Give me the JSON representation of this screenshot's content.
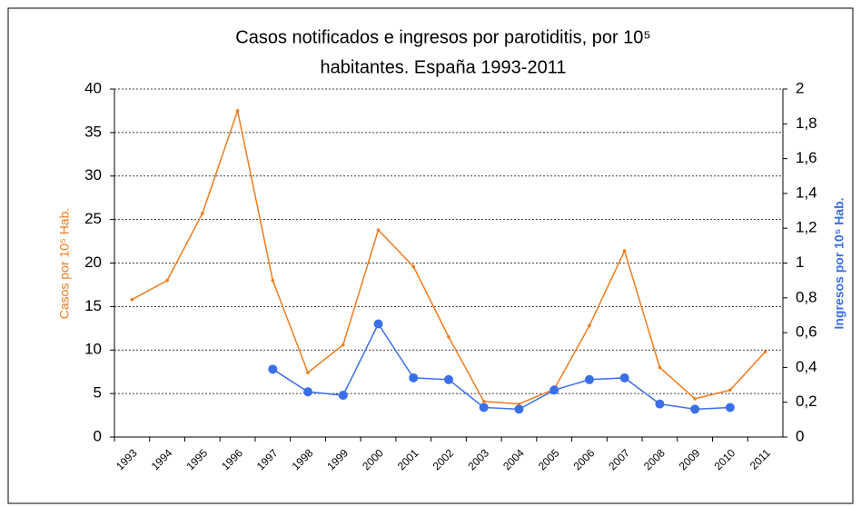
{
  "chart_data": {
    "type": "line",
    "title": [
      "Casos notificados e ingresos por parotiditis,  por 10⁵",
      "habitantes. España 1993-2011"
    ],
    "y_label": "Casos por 10⁵ Hab.",
    "y2_label": "Ingresos por 10⁵ Hab.",
    "categories": [
      "1993",
      "1994",
      "1995",
      "1996",
      "1997",
      "1998",
      "1999",
      "2000",
      "2001",
      "2002",
      "2003",
      "2004",
      "2005",
      "2006",
      "2007",
      "2008",
      "2009",
      "2010",
      "2011"
    ],
    "series": [
      {
        "name": "Casos",
        "color": "#f07c1e",
        "marker": "small",
        "values": [
          15.8,
          18,
          25.7,
          37.5,
          18,
          7.4,
          10.6,
          23.8,
          19.6,
          11.5,
          4.1,
          3.8,
          5.5,
          12.8,
          21.4,
          8,
          4.4,
          5.4,
          9.8
        ]
      },
      {
        "name": "Ingresos",
        "color": "#3a6fe8",
        "axis": "y2",
        "marker": "dot",
        "values": [
          null,
          null,
          null,
          null,
          0.39,
          0.26,
          0.24,
          0.65,
          0.34,
          0.33,
          0.17,
          0.16,
          0.27,
          0.33,
          0.34,
          0.19,
          0.16,
          0.17,
          null
        ]
      }
    ],
    "ylim": [
      0,
      40
    ],
    "yticks": [
      0,
      5,
      10,
      15,
      20,
      25,
      30,
      35,
      40
    ],
    "y2lim": [
      0,
      2
    ],
    "y2ticks": [
      0,
      {
        "value": 0.2,
        "label": "0,2"
      },
      {
        "value": 0.4,
        "label": "0,4"
      },
      {
        "value": 0.6,
        "label": "0,6"
      },
      {
        "value": 0.8,
        "label": "0,8"
      },
      1,
      {
        "value": 1.2,
        "label": "1,2"
      },
      {
        "value": 1.4,
        "label": "1,4"
      },
      {
        "value": 1.6,
        "label": "1,6"
      },
      {
        "value": 1.8,
        "label": "1,8"
      },
      2
    ],
    "grid": true
  }
}
